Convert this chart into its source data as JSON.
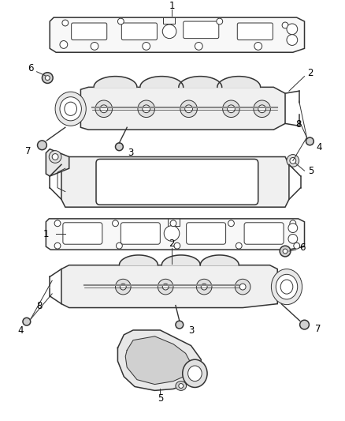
{
  "background_color": "#ffffff",
  "line_color": "#333333",
  "label_color": "#000000",
  "figsize": [
    4.38,
    5.33
  ],
  "dpi": 100
}
